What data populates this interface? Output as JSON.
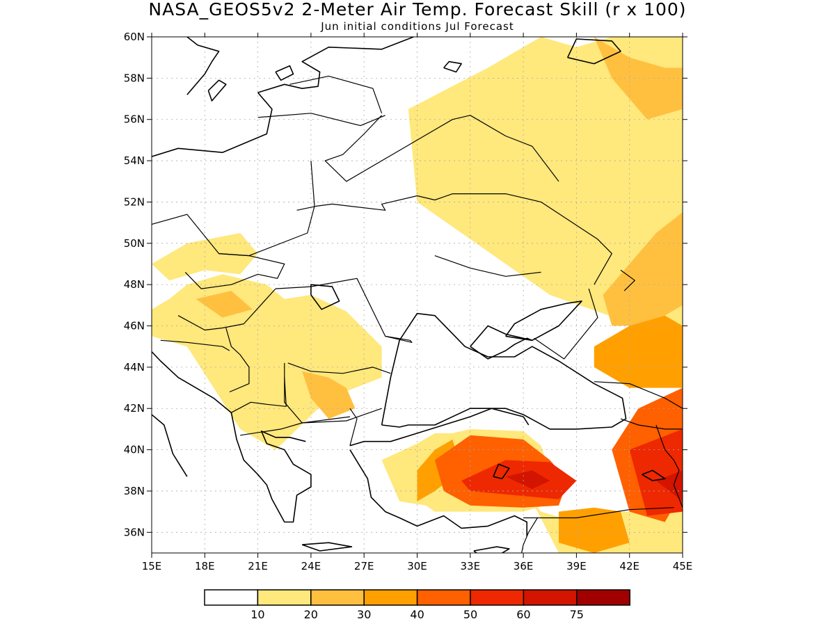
{
  "title": "NASA_GEOS5v2 2-Meter Air Temp. Forecast Skill (r x 100)",
  "subtitle": "Jun initial conditions  Jul Forecast",
  "map": {
    "lon_range": [
      15,
      45
    ],
    "lat_range": [
      35,
      60
    ],
    "gridlines": true,
    "lat_ticks": [
      {
        "value": 36,
        "label": "36N"
      },
      {
        "value": 38,
        "label": "38N"
      },
      {
        "value": 40,
        "label": "40N"
      },
      {
        "value": 42,
        "label": "42N"
      },
      {
        "value": 44,
        "label": "44N"
      },
      {
        "value": 46,
        "label": "46N"
      },
      {
        "value": 48,
        "label": "48N"
      },
      {
        "value": 50,
        "label": "50N"
      },
      {
        "value": 52,
        "label": "52N"
      },
      {
        "value": 54,
        "label": "54N"
      },
      {
        "value": 56,
        "label": "56N"
      },
      {
        "value": 58,
        "label": "58N"
      },
      {
        "value": 60,
        "label": "60N"
      }
    ],
    "lon_ticks": [
      {
        "value": 15,
        "label": "15E"
      },
      {
        "value": 18,
        "label": "18E"
      },
      {
        "value": 21,
        "label": "21E"
      },
      {
        "value": 24,
        "label": "24E"
      },
      {
        "value": 27,
        "label": "27E"
      },
      {
        "value": 30,
        "label": "30E"
      },
      {
        "value": 33,
        "label": "33E"
      },
      {
        "value": 36,
        "label": "36E"
      },
      {
        "value": 39,
        "label": "39E"
      },
      {
        "value": 42,
        "label": "42E"
      },
      {
        "value": 45,
        "label": "45E"
      }
    ]
  },
  "colorbar": {
    "colors": [
      "#ffffff",
      "#ffe87c",
      "#ffc040",
      "#ffa000",
      "#ff6000",
      "#ee2800",
      "#d21400",
      "#a00000"
    ],
    "labels": [
      "10",
      "20",
      "30",
      "40",
      "50",
      "60",
      "75"
    ]
  },
  "skill_regions": [
    {
      "level": 1,
      "lon": [
        29.5,
        34,
        36,
        37,
        37,
        39,
        41,
        42,
        44,
        45,
        45,
        42.5,
        37.5,
        30,
        29.5
      ],
      "lat": [
        56.5,
        58.5,
        59.5,
        60,
        60,
        59.5,
        60,
        60,
        60,
        60,
        46,
        46,
        47.5,
        52,
        56.5
      ]
    },
    {
      "level": 1,
      "lon": [
        15,
        17,
        20,
        21,
        20,
        18,
        16,
        15
      ],
      "lat": [
        49,
        50,
        50.5,
        49.5,
        48.5,
        48.7,
        48.2,
        49
      ]
    },
    {
      "level": 1,
      "lon": [
        15,
        16,
        17,
        19,
        21.5,
        22.5,
        24,
        26,
        28,
        28,
        25,
        22.5,
        22,
        20,
        17,
        15
      ],
      "lat": [
        46.8,
        47.3,
        48,
        48.5,
        48,
        47.3,
        47.5,
        46.7,
        45,
        43.5,
        42.5,
        40.4,
        40,
        41,
        45,
        45.5
      ]
    },
    {
      "level": 1,
      "lon": [
        28,
        30,
        31,
        32,
        33,
        36,
        37,
        38,
        36,
        33,
        31,
        30.5,
        29,
        28
      ],
      "lat": [
        39.5,
        40.3,
        40.8,
        40.8,
        41,
        40.9,
        40.2,
        37.5,
        37,
        37,
        37,
        37.3,
        37.5,
        39.5
      ]
    },
    {
      "level": 1,
      "lon": [
        36.5,
        37,
        39,
        41,
        43,
        45,
        45,
        42,
        40,
        38,
        36.5
      ],
      "lat": [
        37.5,
        37,
        36.5,
        37,
        37,
        37,
        35,
        35,
        35,
        35,
        37.5
      ]
    },
    {
      "level": 2,
      "lon": [
        23.5,
        25,
        26,
        26.5,
        25,
        24,
        23.5
      ],
      "lat": [
        43.8,
        43.5,
        43,
        42,
        41.5,
        42.5,
        43.8
      ]
    },
    {
      "level": 2,
      "lon": [
        17.5,
        19.5,
        20.7,
        19,
        17.5
      ],
      "lat": [
        47.3,
        47.7,
        46.8,
        46.4,
        47.3
      ]
    },
    {
      "level": 2,
      "lon": [
        40,
        42,
        44,
        45,
        45,
        43,
        41,
        40
      ],
      "lat": [
        60,
        59,
        58.5,
        58.5,
        56.5,
        56,
        58,
        60
      ]
    },
    {
      "level": 2,
      "lon": [
        40.5,
        42,
        43.5,
        45,
        45,
        43,
        41,
        40.5
      ],
      "lat": [
        47.5,
        49,
        50.5,
        51.5,
        47,
        46,
        46,
        47.5
      ]
    },
    {
      "level": 3,
      "lon": [
        40,
        42,
        44,
        45,
        45,
        42,
        40,
        40
      ],
      "lat": [
        45,
        46,
        46.5,
        46,
        43,
        43,
        44,
        45
      ]
    },
    {
      "level": 3,
      "lon": [
        30,
        31,
        32,
        32.5,
        31,
        30,
        30
      ],
      "lat": [
        39,
        40,
        40.5,
        39,
        38,
        37.5,
        39
      ]
    },
    {
      "level": 3,
      "lon": [
        38,
        40,
        41.5,
        42,
        40,
        38,
        38
      ],
      "lat": [
        37,
        37.2,
        37,
        35.5,
        35,
        35.5,
        37
      ]
    },
    {
      "level": 4,
      "lon": [
        31,
        33,
        36,
        37.5,
        38.5,
        38,
        36,
        33,
        31.5,
        31
      ],
      "lat": [
        39.5,
        40.7,
        40.5,
        39.5,
        38.5,
        37.3,
        37.2,
        37.3,
        38,
        39.5
      ]
    },
    {
      "level": 4,
      "lon": [
        41,
        42.5,
        45,
        45,
        44,
        42,
        41
      ],
      "lat": [
        40,
        42,
        43,
        38,
        36.5,
        37,
        40
      ]
    },
    {
      "level": 5,
      "lon": [
        32.5,
        35,
        37.5,
        39,
        38,
        35.5,
        33,
        32.5
      ],
      "lat": [
        38.5,
        39.5,
        39.4,
        38.5,
        37.6,
        37.8,
        38,
        38.5
      ]
    },
    {
      "level": 5,
      "lon": [
        42,
        45,
        45,
        43,
        42
      ],
      "lat": [
        40,
        41,
        37,
        36.8,
        40
      ]
    },
    {
      "level": 6,
      "lon": [
        35,
        36.5,
        37.5,
        36.5,
        35
      ],
      "lat": [
        38.7,
        39,
        38.5,
        38.1,
        38.7
      ]
    },
    {
      "level": 6,
      "lon": [
        43.5,
        45,
        45,
        43.5
      ],
      "lat": [
        38.5,
        39,
        37.5,
        38.5
      ]
    }
  ],
  "coastlines": [
    {
      "lon": [
        28,
        29,
        29.5,
        31,
        33,
        35,
        36,
        37.5,
        39,
        41,
        41.8,
        41.6,
        40,
        38,
        36.5,
        35.5,
        34,
        32.7,
        31,
        30,
        29,
        28.5,
        28
      ],
      "lat": [
        41.2,
        41.1,
        41.2,
        41.2,
        42,
        42,
        41.7,
        41,
        41,
        41.1,
        41.5,
        42.5,
        43.2,
        44.3,
        45,
        44.5,
        44.5,
        45,
        46.5,
        46.6,
        45.3,
        43.5,
        41.2
      ]
    },
    {
      "lon": [
        33,
        34,
        35,
        35.5,
        36.2,
        36.5,
        35,
        34,
        33
      ],
      "lat": [
        45,
        44.4,
        44.8,
        45.1,
        45.4,
        45.3,
        45.6,
        46,
        45
      ]
    },
    {
      "lon": [
        35,
        36.5,
        38,
        39.3,
        38.5,
        37,
        35.5,
        35
      ],
      "lat": [
        45.5,
        45.3,
        46,
        47.2,
        47.1,
        46.8,
        46.1,
        45.5
      ]
    },
    {
      "lon": [
        26.2,
        27,
        28.5,
        30,
        31.5,
        33,
        34.2,
        36,
        36.3
      ],
      "lat": [
        40.2,
        40.4,
        40.4,
        40.8,
        41.2,
        41.6,
        42,
        41.6,
        41.2
      ]
    },
    {
      "lon": [
        26.2,
        26.7,
        27.2,
        27.4,
        28.2,
        29,
        30,
        31.5,
        32.5,
        34,
        35.5,
        36.2,
        36.2
      ],
      "lat": [
        40,
        39.3,
        38.6,
        37.7,
        37,
        36.7,
        36.3,
        36.8,
        36.2,
        36.3,
        36.8,
        36.5,
        35.8
      ]
    },
    {
      "lon": [
        19.5,
        19.8,
        20.2,
        21,
        21.5,
        21.8,
        22.5,
        23,
        23.2,
        24,
        24,
        23,
        22.5,
        21.5,
        21.2,
        22,
        22.8,
        23.7
      ],
      "lat": [
        41.8,
        40.5,
        39.5,
        38.8,
        38.3,
        37.6,
        36.5,
        36.5,
        37.8,
        38.2,
        38.8,
        39.3,
        40,
        40.3,
        40.9,
        40.6,
        40.6,
        40.4
      ]
    },
    {
      "lon": [
        13.5,
        14.5,
        15.5,
        16.5,
        17.5,
        18.5,
        19.5
      ],
      "lat": [
        45.5,
        45.2,
        44.3,
        43.5,
        43,
        42.5,
        41.8
      ]
    },
    {
      "lon": [
        15,
        15.7,
        16.2,
        17
      ],
      "lat": [
        41.7,
        41.2,
        39.8,
        38.7
      ]
    },
    {
      "lon": [
        15,
        16.5,
        19,
        21.5,
        21.8,
        21
      ],
      "lat": [
        54.2,
        54.6,
        54.4,
        55.3,
        56.5,
        57.3
      ]
    },
    {
      "lon": [
        21,
        22.5,
        23.5,
        24.4,
        24.5,
        23.5,
        25,
        28,
        29.8
      ],
      "lat": [
        57.3,
        57.7,
        57.5,
        57.6,
        58.3,
        58.8,
        59.5,
        59.4,
        60
      ]
    },
    {
      "lon": [
        22,
        22.8,
        23,
        22.3,
        22
      ],
      "lat": [
        58.3,
        58.6,
        58.2,
        57.9,
        58.3
      ]
    },
    {
      "lon": [
        17,
        17.6,
        18.8,
        18.4,
        18,
        17
      ],
      "lat": [
        60,
        59.6,
        59.3,
        58.8,
        58.2,
        57.2
      ]
    },
    {
      "lon": [
        18.2,
        18.8,
        19.2,
        18.4,
        18.2
      ],
      "lat": [
        57.4,
        57.9,
        57.7,
        56.9,
        57.4
      ]
    },
    {
      "lon": [
        33.2,
        34.5,
        35.2,
        34,
        33.2
      ],
      "lat": [
        35.1,
        35.3,
        35.2,
        34.6,
        35.1
      ]
    },
    {
      "lon": [
        23.5,
        25,
        26.3,
        24.5,
        23.5
      ],
      "lat": [
        35.4,
        35.5,
        35.3,
        35.1,
        35.4
      ]
    },
    {
      "lon": [
        38.5,
        40,
        41.5,
        41,
        39,
        38.5
      ],
      "lat": [
        59,
        58.7,
        59.3,
        59.8,
        59.9,
        59
      ]
    },
    {
      "lon": [
        31.5,
        32.2,
        32.5,
        31.8,
        31.5
      ],
      "lat": [
        58.5,
        58.3,
        58.7,
        58.8,
        58.5
      ]
    },
    {
      "lon": [
        24,
        24.6,
        25.6,
        25.2,
        24,
        24
      ],
      "lat": [
        47.5,
        46.8,
        47.2,
        47.9,
        48,
        47.5
      ]
    },
    {
      "lon": [
        42.7,
        43.3,
        44,
        43.3,
        42.7
      ],
      "lat": [
        38.8,
        38.5,
        38.6,
        39,
        38.8
      ]
    },
    {
      "lon": [
        34.3,
        34.8,
        35.2,
        34.6,
        34.3
      ],
      "lat": [
        38.7,
        38.6,
        39.1,
        39.3,
        38.7
      ]
    }
  ],
  "borders": [
    {
      "lon": [
        14.5,
        17,
        18.8,
        20.5,
        23.8,
        24.2,
        24
      ],
      "lat": [
        50.8,
        51.4,
        49.5,
        49.4,
        50.5,
        51.8,
        54
      ]
    },
    {
      "lon": [
        18.8,
        20.5,
        22.5,
        22.1,
        21,
        19.5,
        17.8,
        16.9
      ],
      "lat": [
        49.5,
        49.4,
        49,
        48.3,
        48.5,
        48,
        47.8,
        48.6
      ]
    },
    {
      "lon": [
        16.5,
        18,
        19,
        20.2,
        22
      ],
      "lat": [
        46.5,
        45.8,
        45.9,
        46.1,
        47.8
      ]
    },
    {
      "lon": [
        22,
        24,
        26.6,
        28.2,
        29.6,
        29.7,
        28.2
      ],
      "lat": [
        47.8,
        47.9,
        48.3,
        45.5,
        45.3,
        45.2,
        45.5
      ]
    },
    {
      "lon": [
        22.7,
        24,
        25.8,
        27.5,
        28.5
      ],
      "lat": [
        44.2,
        43.8,
        43.7,
        44,
        43.7
      ]
    },
    {
      "lon": [
        22.5,
        22.5,
        23.5,
        26,
        28
      ],
      "lat": [
        44.2,
        42.3,
        41.3,
        41.4,
        42
      ]
    },
    {
      "lon": [
        26.2,
        26.6,
        26.2
      ],
      "lat": [
        40.2,
        41.5,
        42
      ]
    },
    {
      "lon": [
        20,
        22.3,
        23.5,
        26.2
      ],
      "lat": [
        40.7,
        41,
        41.3,
        41.6
      ]
    },
    {
      "lon": [
        19.5,
        20.6,
        21.5,
        22.6,
        22.5
      ],
      "lat": [
        41.8,
        42.3,
        42.2,
        42.1,
        43.5
      ]
    },
    {
      "lon": [
        19.2,
        19.5,
        20,
        20.5,
        20.5,
        19.4
      ],
      "lat": [
        45.9,
        45,
        44.6,
        44,
        43.2,
        42.8
      ]
    },
    {
      "lon": [
        15.5,
        17,
        19,
        19.4
      ],
      "lat": [
        45.3,
        45.2,
        45,
        44.8
      ]
    },
    {
      "lon": [
        23.2,
        24.3,
        25.2,
        28.2,
        28,
        30,
        31,
        32,
        35,
        37,
        40.2,
        41,
        40
      ],
      "lat": [
        51.6,
        51.8,
        51.9,
        51.6,
        51.9,
        52.3,
        52.1,
        52.4,
        52.4,
        52,
        50.2,
        49.5,
        48
      ]
    },
    {
      "lon": [
        28,
        27,
        25.8,
        24.8,
        26,
        30,
        32,
        33,
        35,
        36.5,
        38
      ],
      "lat": [
        56.2,
        55.3,
        54.3,
        54,
        53,
        55,
        56,
        56.2,
        55.2,
        54.7,
        53
      ]
    },
    {
      "lon": [
        21,
        24,
        26.8,
        28.2
      ],
      "lat": [
        56.1,
        56.3,
        55.7,
        56.2
      ]
    },
    {
      "lon": [
        22.8,
        25,
        27.5,
        28
      ],
      "lat": [
        57.7,
        58.1,
        57.5,
        56.3
      ]
    },
    {
      "lon": [
        39.7,
        40.2,
        38.3,
        36.6
      ],
      "lat": [
        47.8,
        46.4,
        44.4,
        45.4
      ]
    },
    {
      "lon": [
        40,
        42,
        44,
        45
      ],
      "lat": [
        43.3,
        43.2,
        42.5,
        42
      ]
    },
    {
      "lon": [
        41.5,
        42.5,
        44,
        45
      ],
      "lat": [
        41.5,
        41.2,
        41,
        41
      ]
    },
    {
      "lon": [
        43.5,
        44,
        44.5,
        44.8,
        44.5,
        45
      ],
      "lat": [
        41.2,
        40,
        39.5,
        39,
        38.3,
        37.2
      ]
    },
    {
      "lon": [
        36,
        37,
        39,
        42,
        44.5
      ],
      "lat": [
        36.7,
        36.7,
        36.7,
        37.1,
        37.2
      ]
    },
    {
      "lon": [
        36.8,
        36.3,
        36,
        35.9
      ],
      "lat": [
        36.7,
        36,
        35.4,
        35
      ]
    },
    {
      "lon": [
        31,
        33,
        35,
        37
      ],
      "lat": [
        49.4,
        48.8,
        48.4,
        48.6
      ]
    },
    {
      "lon": [
        41.5,
        42.3,
        41.7
      ],
      "lat": [
        48.7,
        48.2,
        47.7
      ]
    }
  ]
}
